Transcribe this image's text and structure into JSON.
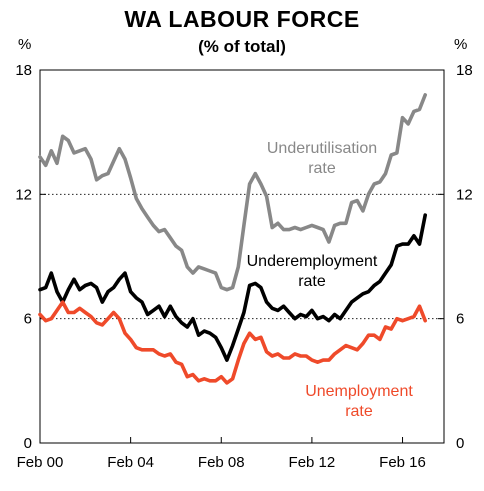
{
  "title": "WA LABOUR FORCE",
  "subtitle": "(% of total)",
  "chart_data": {
    "type": "line",
    "title": "WA LABOUR FORCE",
    "subtitle": "(% of total)",
    "y_unit_left": "%",
    "y_unit_right": "%",
    "ylim": [
      0,
      18
    ],
    "y_ticks": [
      0,
      6,
      12,
      18
    ],
    "xlim": [
      2000.0,
      2017.83
    ],
    "x_ticks": [
      {
        "value": 2000,
        "label": "Feb 00"
      },
      {
        "value": 2004,
        "label": "Feb 04"
      },
      {
        "value": 2008,
        "label": "Feb 08"
      },
      {
        "value": 2012,
        "label": "Feb 12"
      },
      {
        "value": 2016,
        "label": "Feb 16"
      }
    ],
    "gridlines_at": [
      6,
      12
    ],
    "grid": "dotted horizontal",
    "series": [
      {
        "name": "Underutilisation rate",
        "label_lines": [
          "Underutilisation",
          "rate"
        ],
        "color": "#888888",
        "x": [
          2000.0,
          2000.25,
          2000.5,
          2000.75,
          2001.0,
          2001.25,
          2001.5,
          2001.75,
          2002.0,
          2002.25,
          2002.5,
          2002.75,
          2003.0,
          2003.25,
          2003.5,
          2003.75,
          2004.0,
          2004.25,
          2004.5,
          2004.75,
          2005.0,
          2005.25,
          2005.5,
          2005.75,
          2006.0,
          2006.25,
          2006.5,
          2006.75,
          2007.0,
          2007.25,
          2007.5,
          2007.75,
          2008.0,
          2008.25,
          2008.5,
          2008.75,
          2009.0,
          2009.25,
          2009.5,
          2009.75,
          2010.0,
          2010.25,
          2010.5,
          2010.75,
          2011.0,
          2011.25,
          2011.5,
          2011.75,
          2012.0,
          2012.25,
          2012.5,
          2012.75,
          2013.0,
          2013.25,
          2013.5,
          2013.75,
          2014.0,
          2014.25,
          2014.5,
          2014.75,
          2015.0,
          2015.25,
          2015.5,
          2015.75,
          2016.0,
          2016.25,
          2016.5,
          2016.75,
          2017.0
        ],
        "values": [
          13.8,
          13.4,
          14.1,
          13.5,
          14.8,
          14.6,
          14.0,
          14.1,
          14.2,
          13.7,
          12.7,
          12.9,
          13.0,
          13.6,
          14.2,
          13.7,
          12.8,
          11.8,
          11.3,
          10.9,
          10.5,
          10.2,
          10.3,
          9.9,
          9.5,
          9.3,
          8.5,
          8.2,
          8.5,
          8.4,
          8.3,
          8.2,
          7.5,
          7.4,
          7.5,
          8.5,
          10.5,
          12.5,
          13.0,
          12.5,
          11.9,
          10.4,
          10.6,
          10.3,
          10.3,
          10.4,
          10.3,
          10.4,
          10.5,
          10.4,
          10.3,
          9.7,
          10.5,
          10.6,
          10.6,
          11.6,
          11.7,
          11.2,
          12.0,
          12.5,
          12.6,
          13.0,
          13.9,
          14.0,
          15.7,
          15.4,
          16.0,
          16.1,
          16.8
        ]
      },
      {
        "name": "Underemployment rate",
        "label_lines": [
          "Underemployment",
          "rate"
        ],
        "color": "#000000",
        "x": [
          2000.0,
          2000.25,
          2000.5,
          2000.75,
          2001.0,
          2001.25,
          2001.5,
          2001.75,
          2002.0,
          2002.25,
          2002.5,
          2002.75,
          2003.0,
          2003.25,
          2003.5,
          2003.75,
          2004.0,
          2004.25,
          2004.5,
          2004.75,
          2005.0,
          2005.25,
          2005.5,
          2005.75,
          2006.0,
          2006.25,
          2006.5,
          2006.75,
          2007.0,
          2007.25,
          2007.5,
          2007.75,
          2008.0,
          2008.25,
          2008.5,
          2008.75,
          2009.0,
          2009.25,
          2009.5,
          2009.75,
          2010.0,
          2010.25,
          2010.5,
          2010.75,
          2011.0,
          2011.25,
          2011.5,
          2011.75,
          2012.0,
          2012.25,
          2012.5,
          2012.75,
          2013.0,
          2013.25,
          2013.5,
          2013.75,
          2014.0,
          2014.25,
          2014.5,
          2014.75,
          2015.0,
          2015.25,
          2015.5,
          2015.75,
          2016.0,
          2016.25,
          2016.5,
          2016.75,
          2017.0
        ],
        "values": [
          7.4,
          7.5,
          8.2,
          7.3,
          6.8,
          7.4,
          7.9,
          7.4,
          7.6,
          7.7,
          7.5,
          6.8,
          7.3,
          7.5,
          7.9,
          8.2,
          7.3,
          7.0,
          6.8,
          6.2,
          6.4,
          6.6,
          6.1,
          6.6,
          6.1,
          5.8,
          5.6,
          6.0,
          5.2,
          5.4,
          5.3,
          5.1,
          4.6,
          4.0,
          4.7,
          5.5,
          6.3,
          7.6,
          7.7,
          7.5,
          6.8,
          6.5,
          6.4,
          6.6,
          6.3,
          6.0,
          6.2,
          6.1,
          6.4,
          6.0,
          6.1,
          5.9,
          6.2,
          6.0,
          6.4,
          6.8,
          7.0,
          7.2,
          7.3,
          7.6,
          7.8,
          8.2,
          8.6,
          9.5,
          9.6,
          9.6,
          10.0,
          9.6,
          11.0
        ]
      },
      {
        "name": "Unemployment rate",
        "label_lines": [
          "Unemployment",
          "rate"
        ],
        "color": "#ef4a2a",
        "x": [
          2000.0,
          2000.25,
          2000.5,
          2000.75,
          2001.0,
          2001.25,
          2001.5,
          2001.75,
          2002.0,
          2002.25,
          2002.5,
          2002.75,
          2003.0,
          2003.25,
          2003.5,
          2003.75,
          2004.0,
          2004.25,
          2004.5,
          2004.75,
          2005.0,
          2005.25,
          2005.5,
          2005.75,
          2006.0,
          2006.25,
          2006.5,
          2006.75,
          2007.0,
          2007.25,
          2007.5,
          2007.75,
          2008.0,
          2008.25,
          2008.5,
          2008.75,
          2009.0,
          2009.25,
          2009.5,
          2009.75,
          2010.0,
          2010.25,
          2010.5,
          2010.75,
          2011.0,
          2011.25,
          2011.5,
          2011.75,
          2012.0,
          2012.25,
          2012.5,
          2012.75,
          2013.0,
          2013.25,
          2013.5,
          2013.75,
          2014.0,
          2014.25,
          2014.5,
          2014.75,
          2015.0,
          2015.25,
          2015.5,
          2015.75,
          2016.0,
          2016.25,
          2016.5,
          2016.75,
          2017.0
        ],
        "values": [
          6.2,
          5.9,
          6.0,
          6.4,
          6.8,
          6.3,
          6.3,
          6.5,
          6.3,
          6.1,
          5.8,
          5.7,
          6.0,
          6.3,
          6.0,
          5.3,
          5.0,
          4.6,
          4.5,
          4.5,
          4.5,
          4.3,
          4.2,
          4.3,
          3.9,
          3.8,
          3.2,
          3.3,
          3.0,
          3.1,
          3.0,
          3.0,
          3.2,
          2.9,
          3.1,
          4.0,
          4.8,
          5.3,
          5.0,
          5.1,
          4.4,
          4.2,
          4.3,
          4.1,
          4.1,
          4.3,
          4.2,
          4.2,
          4.0,
          3.9,
          4.0,
          4.0,
          4.3,
          4.5,
          4.7,
          4.6,
          4.5,
          4.8,
          5.2,
          5.2,
          5.0,
          5.6,
          5.5,
          6.0,
          5.9,
          6.0,
          6.1,
          6.6,
          5.9
        ]
      }
    ]
  }
}
